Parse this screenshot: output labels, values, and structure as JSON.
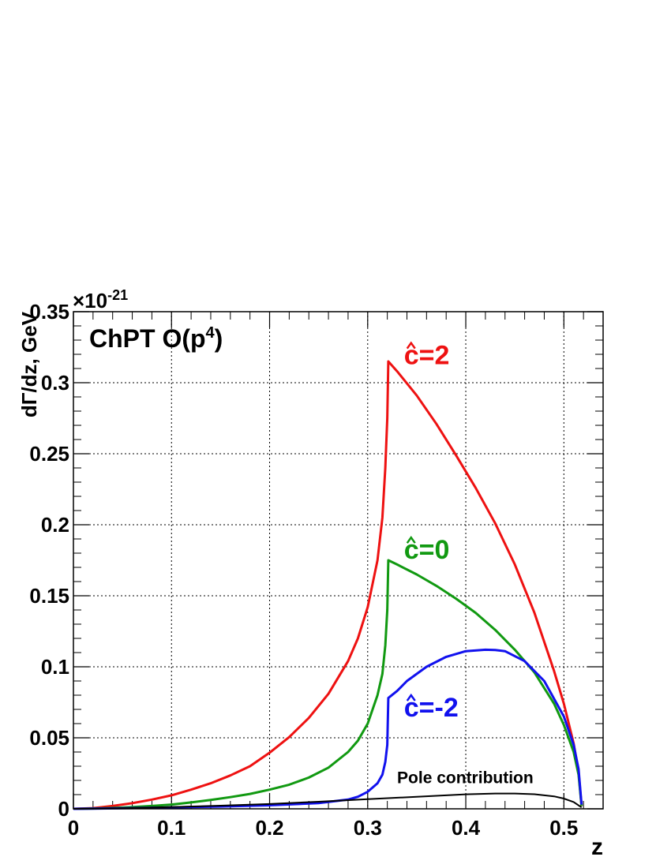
{
  "chart_data": {
    "type": "line",
    "title": "ChPT O(p",
    "title_sup": "4",
    "title_close": ")",
    "xlabel": "z",
    "ylabel": "dΓ/dz, GeV",
    "y_multiplier_prefix": "×10",
    "y_multiplier_exp": "-21",
    "xlim": [
      0,
      0.54
    ],
    "ylim": [
      0,
      0.35
    ],
    "x_ticks": [
      {
        "v": 0,
        "label": "0"
      },
      {
        "v": 0.1,
        "label": "0.1"
      },
      {
        "v": 0.2,
        "label": "0.2"
      },
      {
        "v": 0.3,
        "label": "0.3"
      },
      {
        "v": 0.4,
        "label": "0.4"
      },
      {
        "v": 0.5,
        "label": "0.5"
      }
    ],
    "y_ticks": [
      {
        "v": 0,
        "label": "0"
      },
      {
        "v": 0.05,
        "label": "0.05"
      },
      {
        "v": 0.1,
        "label": "0.1"
      },
      {
        "v": 0.15,
        "label": "0.15"
      },
      {
        "v": 0.2,
        "label": "0.2"
      },
      {
        "v": 0.25,
        "label": "0.25"
      },
      {
        "v": 0.3,
        "label": "0.3"
      },
      {
        "v": 0.35,
        "label": "0.35"
      }
    ],
    "grid": true,
    "series": [
      {
        "color": "#ee1111",
        "x": [
          0,
          0.02,
          0.04,
          0.06,
          0.08,
          0.1,
          0.12,
          0.14,
          0.16,
          0.18,
          0.2,
          0.22,
          0.24,
          0.26,
          0.28,
          0.29,
          0.3,
          0.31,
          0.315,
          0.318,
          0.32,
          0.321,
          0.33,
          0.35,
          0.37,
          0.39,
          0.41,
          0.43,
          0.45,
          0.47,
          0.49,
          0.5,
          0.51,
          0.515,
          0.518
        ],
        "y": [
          0,
          0.0005,
          0.002,
          0.004,
          0.0065,
          0.0095,
          0.0135,
          0.018,
          0.0235,
          0.03,
          0.0395,
          0.0505,
          0.064,
          0.081,
          0.104,
          0.12,
          0.142,
          0.175,
          0.205,
          0.24,
          0.275,
          0.315,
          0.308,
          0.291,
          0.271,
          0.249,
          0.226,
          0.201,
          0.172,
          0.138,
          0.097,
          0.074,
          0.046,
          0.026,
          0.002
        ]
      },
      {
        "color": "#119911",
        "x": [
          0,
          0.02,
          0.04,
          0.06,
          0.08,
          0.1,
          0.12,
          0.14,
          0.16,
          0.18,
          0.2,
          0.22,
          0.24,
          0.26,
          0.28,
          0.29,
          0.3,
          0.31,
          0.315,
          0.318,
          0.32,
          0.321,
          0.33,
          0.35,
          0.37,
          0.39,
          0.41,
          0.43,
          0.45,
          0.47,
          0.49,
          0.5,
          0.51,
          0.515,
          0.518
        ],
        "y": [
          0,
          0.0002,
          0.0006,
          0.0012,
          0.002,
          0.003,
          0.0045,
          0.0062,
          0.0082,
          0.0105,
          0.0135,
          0.017,
          0.022,
          0.029,
          0.04,
          0.048,
          0.06,
          0.08,
          0.095,
          0.115,
          0.14,
          0.175,
          0.172,
          0.165,
          0.157,
          0.148,
          0.138,
          0.126,
          0.112,
          0.096,
          0.074,
          0.059,
          0.04,
          0.024,
          0.002
        ]
      },
      {
        "color": "#1111ee",
        "x": [
          0,
          0.05,
          0.1,
          0.15,
          0.2,
          0.25,
          0.28,
          0.29,
          0.3,
          0.31,
          0.315,
          0.318,
          0.32,
          0.321,
          0.33,
          0.34,
          0.36,
          0.38,
          0.4,
          0.42,
          0.43,
          0.44,
          0.46,
          0.48,
          0.5,
          0.51,
          0.515,
          0.518
        ],
        "y": [
          0,
          0.0004,
          0.001,
          0.0016,
          0.0025,
          0.004,
          0.0065,
          0.0085,
          0.012,
          0.018,
          0.024,
          0.033,
          0.045,
          0.078,
          0.083,
          0.09,
          0.1,
          0.107,
          0.111,
          0.112,
          0.1118,
          0.111,
          0.104,
          0.09,
          0.065,
          0.045,
          0.028,
          0.003
        ]
      },
      {
        "color": "#000000",
        "x": [
          0,
          0.05,
          0.1,
          0.15,
          0.2,
          0.25,
          0.3,
          0.35,
          0.4,
          0.43,
          0.45,
          0.47,
          0.49,
          0.5,
          0.51,
          0.518
        ],
        "y": [
          0,
          0.0004,
          0.0012,
          0.0022,
          0.0034,
          0.005,
          0.0068,
          0.0085,
          0.0102,
          0.0108,
          0.0108,
          0.0103,
          0.0088,
          0.0072,
          0.0048,
          0.001
        ]
      }
    ],
    "annotations": [
      {
        "text": "c=2",
        "color": "#ee1111",
        "x": 0.337,
        "y": 0.313,
        "size": 34
      },
      {
        "text": "c=0",
        "color": "#119911",
        "x": 0.337,
        "y": 0.176,
        "size": 34
      },
      {
        "text": "c=-2",
        "color": "#1111ee",
        "x": 0.337,
        "y": 0.065,
        "size": 34
      },
      {
        "text": "Pole contribution",
        "color": "#000000",
        "x": 0.33,
        "y": 0.018,
        "size": 21
      }
    ]
  }
}
